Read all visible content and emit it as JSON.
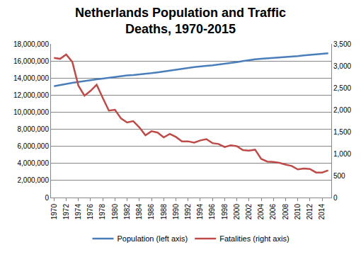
{
  "chart_data": {
    "type": "line",
    "title": "Netherlands Population and Traffic Deaths, 1970-2015",
    "x": [
      1970,
      1971,
      1972,
      1973,
      1974,
      1975,
      1976,
      1977,
      1978,
      1979,
      1980,
      1981,
      1982,
      1983,
      1984,
      1985,
      1986,
      1987,
      1988,
      1989,
      1990,
      1991,
      1992,
      1993,
      1994,
      1995,
      1996,
      1997,
      1998,
      1999,
      2000,
      2001,
      2002,
      2003,
      2004,
      2005,
      2006,
      2007,
      2008,
      2009,
      2010,
      2011,
      2012,
      2013,
      2014,
      2015
    ],
    "series": [
      {
        "name": "Population (left axis)",
        "color": "#4a7ebb",
        "axis": "y",
        "values": [
          13040000,
          13190000,
          13330000,
          13440000,
          13550000,
          13670000,
          13770000,
          13860000,
          13940000,
          14030000,
          14150000,
          14250000,
          14310000,
          14360000,
          14420000,
          14490000,
          14570000,
          14670000,
          14760000,
          14850000,
          14950000,
          15070000,
          15180000,
          15290000,
          15380000,
          15420000,
          15490000,
          15570000,
          15650000,
          15760000,
          15860000,
          15990000,
          16110000,
          16190000,
          16260000,
          16310000,
          16330000,
          16360000,
          16410000,
          16490000,
          16570000,
          16660000,
          16730000,
          16780000,
          16830000,
          16900000
        ]
      },
      {
        "name": "Fatalities (right axis)",
        "color": "#be4b48",
        "axis": "y2",
        "values": [
          3180,
          3160,
          3260,
          3090,
          2550,
          2320,
          2430,
          2570,
          2270,
          1980,
          2000,
          1800,
          1710,
          1740,
          1600,
          1420,
          1510,
          1480,
          1370,
          1450,
          1380,
          1280,
          1280,
          1250,
          1300,
          1330,
          1240,
          1220,
          1150,
          1190,
          1170,
          1080,
          1070,
          1090,
          880,
          820,
          810,
          790,
          750,
          720,
          640,
          660,
          650,
          570,
          570,
          620
        ]
      }
    ],
    "xlim": [
      1969.5,
      2015.5
    ],
    "xticks": [
      1970,
      1972,
      1974,
      1976,
      1978,
      1980,
      1982,
      1984,
      1986,
      1988,
      1990,
      1992,
      1994,
      1996,
      1998,
      2000,
      2002,
      2004,
      2006,
      2008,
      2010,
      2012,
      2014
    ],
    "ylim": [
      0,
      18000000
    ],
    "yticks": [
      0,
      {
        "value": 2000000,
        "label": "2,000,000"
      },
      {
        "value": 4000000,
        "label": "4,000,000"
      },
      {
        "value": 6000000,
        "label": "6,000,000"
      },
      {
        "value": 8000000,
        "label": "8,000,000"
      },
      {
        "value": 10000000,
        "label": "10,000,000"
      },
      {
        "value": 12000000,
        "label": "12,000,000"
      },
      {
        "value": 14000000,
        "label": "14,000,000"
      },
      {
        "value": 16000000,
        "label": "16,000,000"
      },
      {
        "value": 18000000,
        "label": "18,000,000"
      }
    ],
    "y2lim": [
      0,
      3500
    ],
    "y2ticks": [
      0,
      500,
      {
        "value": 1000,
        "label": "1,000"
      },
      {
        "value": 1500,
        "label": "1,500"
      },
      {
        "value": 2000,
        "label": "2,000"
      },
      {
        "value": 2500,
        "label": "2,500"
      },
      {
        "value": 3000,
        "label": "3,000"
      },
      {
        "value": 3500,
        "label": "3,500"
      }
    ],
    "grid": true,
    "legend": "bottom"
  }
}
